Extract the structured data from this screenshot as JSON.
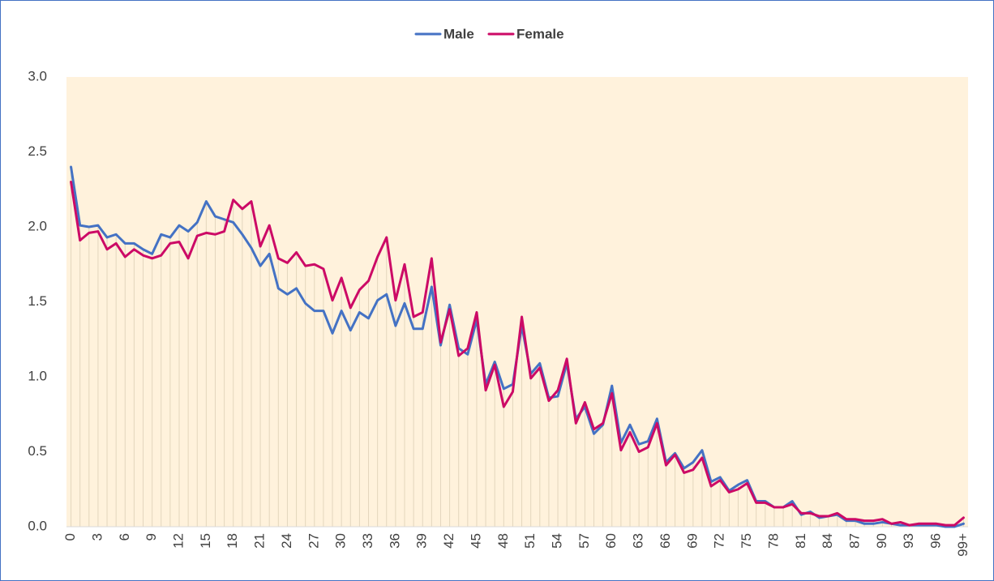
{
  "chart_data": {
    "type": "line",
    "categories": [
      "0",
      null,
      null,
      "3",
      null,
      null,
      "6",
      null,
      null,
      "9",
      null,
      null,
      "12",
      null,
      null,
      "15",
      null,
      null,
      "18",
      null,
      null,
      "21",
      null,
      null,
      "24",
      null,
      null,
      "27",
      null,
      null,
      "30",
      null,
      null,
      "33",
      null,
      null,
      "36",
      null,
      null,
      "39",
      null,
      null,
      "42",
      null,
      null,
      "45",
      null,
      null,
      "48",
      null,
      null,
      "51",
      null,
      null,
      "54",
      null,
      null,
      "57",
      null,
      null,
      "60",
      null,
      null,
      "63",
      null,
      null,
      "66",
      null,
      null,
      "69",
      null,
      null,
      "72",
      null,
      null,
      "75",
      null,
      null,
      "78",
      null,
      null,
      "81",
      null,
      null,
      "84",
      null,
      null,
      "87",
      null,
      null,
      "90",
      null,
      null,
      "93",
      null,
      null,
      "96",
      null,
      null,
      "99+"
    ],
    "series": [
      {
        "name": "Male",
        "color": "#4472c4",
        "values": [
          2.4,
          2.01,
          2.0,
          2.01,
          1.93,
          1.95,
          1.89,
          1.89,
          1.85,
          1.82,
          1.95,
          1.93,
          2.01,
          1.97,
          2.03,
          2.17,
          2.07,
          2.05,
          2.03,
          1.95,
          1.86,
          1.74,
          1.82,
          1.59,
          1.55,
          1.59,
          1.49,
          1.44,
          1.44,
          1.29,
          1.44,
          1.31,
          1.43,
          1.39,
          1.51,
          1.55,
          1.34,
          1.49,
          1.32,
          1.32,
          1.6,
          1.21,
          1.48,
          1.19,
          1.15,
          1.38,
          0.95,
          1.1,
          0.92,
          0.95,
          1.34,
          1.02,
          1.09,
          0.86,
          0.87,
          1.09,
          0.72,
          0.8,
          0.62,
          0.68,
          0.94,
          0.56,
          0.68,
          0.55,
          0.57,
          0.72,
          0.43,
          0.49,
          0.39,
          0.43,
          0.51,
          0.3,
          0.33,
          0.24,
          0.28,
          0.31,
          0.17,
          0.17,
          0.13,
          0.13,
          0.17,
          0.08,
          0.1,
          0.06,
          0.07,
          0.08,
          0.04,
          0.04,
          0.02,
          0.02,
          0.03,
          0.02,
          0.01,
          0.01,
          0.01,
          0.01,
          0.01,
          0.0,
          0.0,
          0.02
        ]
      },
      {
        "name": "Female",
        "color": "#cc0a66",
        "values": [
          2.3,
          1.91,
          1.96,
          1.97,
          1.85,
          1.89,
          1.8,
          1.85,
          1.81,
          1.79,
          1.81,
          1.89,
          1.9,
          1.79,
          1.94,
          1.96,
          1.95,
          1.97,
          2.18,
          2.12,
          2.17,
          1.87,
          2.01,
          1.79,
          1.76,
          1.83,
          1.74,
          1.75,
          1.72,
          1.51,
          1.66,
          1.46,
          1.58,
          1.64,
          1.8,
          1.93,
          1.51,
          1.75,
          1.4,
          1.43,
          1.79,
          1.23,
          1.45,
          1.14,
          1.19,
          1.43,
          0.91,
          1.08,
          0.8,
          0.9,
          1.4,
          0.99,
          1.06,
          0.84,
          0.91,
          1.12,
          0.69,
          0.83,
          0.65,
          0.69,
          0.89,
          0.51,
          0.63,
          0.5,
          0.53,
          0.69,
          0.41,
          0.48,
          0.36,
          0.38,
          0.46,
          0.27,
          0.31,
          0.23,
          0.25,
          0.29,
          0.16,
          0.16,
          0.13,
          0.13,
          0.15,
          0.09,
          0.09,
          0.07,
          0.07,
          0.09,
          0.05,
          0.05,
          0.04,
          0.04,
          0.05,
          0.02,
          0.03,
          0.01,
          0.02,
          0.02,
          0.02,
          0.01,
          0.01,
          0.06
        ]
      }
    ],
    "ylim": [
      0,
      3
    ],
    "yticks": [
      {
        "value": 0,
        "label": "0.0"
      },
      {
        "value": 0.5,
        "label": "0.5"
      },
      {
        "value": 1,
        "label": "1.0"
      },
      {
        "value": 1.5,
        "label": "1.5"
      },
      {
        "value": 2,
        "label": "2.0"
      },
      {
        "value": 2.5,
        "label": "2.5"
      },
      {
        "value": 3,
        "label": "3.0"
      }
    ],
    "plot_background": "#fff2dc",
    "drop_line_color": "#e3d6bd",
    "legend": "top"
  }
}
